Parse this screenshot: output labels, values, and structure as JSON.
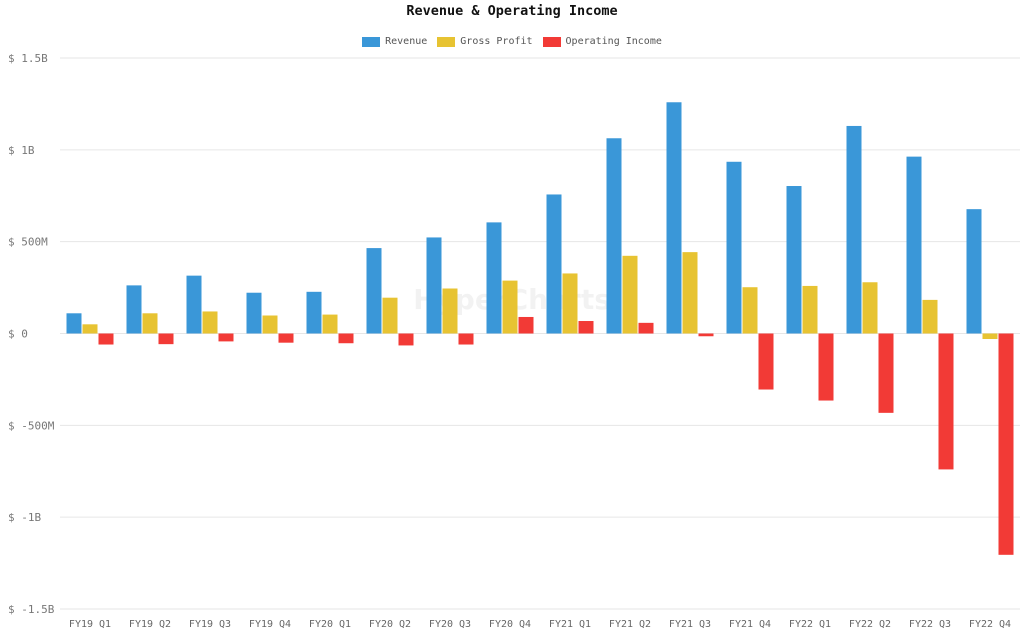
{
  "chart_data": {
    "type": "bar",
    "title": "Revenue & Operating Income",
    "categories": [
      "FY19 Q1",
      "FY19 Q2",
      "FY19 Q3",
      "FY19 Q4",
      "FY20 Q1",
      "FY20 Q2",
      "FY20 Q3",
      "FY20 Q4",
      "FY21 Q1",
      "FY21 Q2",
      "FY21 Q3",
      "FY21 Q4",
      "FY22 Q1",
      "FY22 Q2",
      "FY22 Q3",
      "FY22 Q4"
    ],
    "series": [
      {
        "name": "Revenue",
        "color": "#3a97d8",
        "values": [
          110,
          262,
          315,
          222,
          227,
          465,
          523,
          605,
          757,
          1063,
          1259,
          935,
          803,
          1130,
          963,
          677
        ]
      },
      {
        "name": "Gross Profit",
        "color": "#e7c332",
        "values": [
          50,
          110,
          120,
          98,
          103,
          195,
          245,
          288,
          327,
          423,
          443,
          252,
          259,
          279,
          183,
          -30
        ]
      },
      {
        "name": "Operating Income",
        "color": "#f23a36",
        "values": [
          -60,
          -58,
          -43,
          -50,
          -53,
          -65,
          -60,
          90,
          68,
          58,
          -15,
          -305,
          -365,
          -432,
          -740,
          -1205
        ]
      }
    ],
    "ylim": [
      -1500,
      1500
    ],
    "yticks": [
      {
        "value": 1500,
        "label": "$ 1.5B"
      },
      {
        "value": 1000,
        "label": "$ 1B"
      },
      {
        "value": 500,
        "label": "$ 500M"
      },
      {
        "value": 0,
        "label": "$ 0"
      },
      {
        "value": -500,
        "label": "$ -500M"
      },
      {
        "value": -1000,
        "label": "$ -1B"
      },
      {
        "value": -1500,
        "label": "$ -1.5B"
      }
    ],
    "grid": true,
    "legend_position": "top-center",
    "watermark": "HyperCharts"
  }
}
